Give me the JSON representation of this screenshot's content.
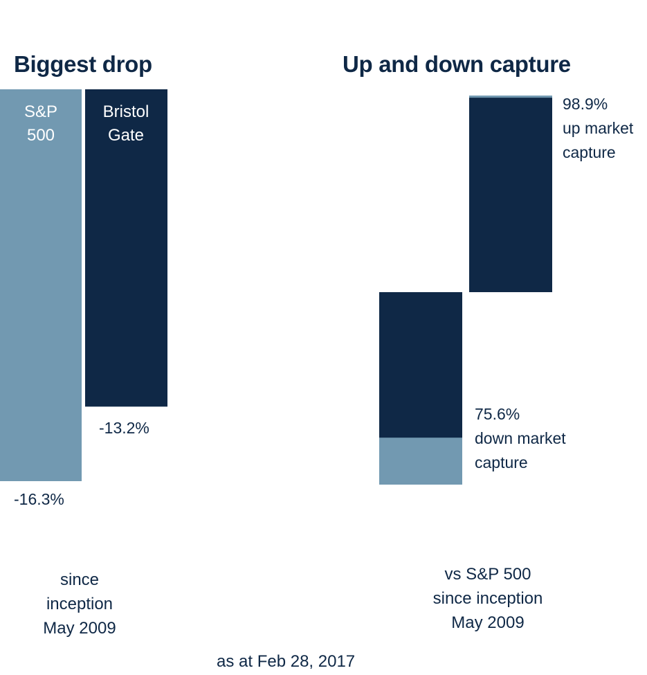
{
  "chart_data": [
    {
      "type": "bar",
      "title": "Biggest drop",
      "series": [
        {
          "name": "S&P 500",
          "name_lines": [
            "S&P",
            "500"
          ],
          "value": -16.3,
          "value_label": "-16.3%",
          "color": "#7299b1",
          "label_color": "#ffffff"
        },
        {
          "name": "Bristol Gate",
          "name_lines": [
            "Bristol",
            "Gate"
          ],
          "value": -13.2,
          "value_label": "-13.2%",
          "color": "#0f2846",
          "label_color": "#ffffff"
        }
      ],
      "note_lines": [
        "since",
        "inception",
        "May 2009"
      ]
    },
    {
      "type": "bar",
      "title": "Up and down capture",
      "series": [
        {
          "name": "down market capture",
          "value": 75.6,
          "value_label": "75.6%",
          "label_lines": [
            "down market",
            "capture"
          ],
          "color": "#0f2846",
          "base_color": "#7299b1"
        },
        {
          "name": "up market capture",
          "value": 98.9,
          "value_label": "98.9%",
          "label_lines": [
            "up market",
            "capture"
          ],
          "color": "#0f2846",
          "base_color": "#7299b1"
        }
      ],
      "note_lines": [
        "vs S&P 500",
        "since inception",
        "May 2009"
      ]
    }
  ],
  "footer": "as at Feb 28, 2017"
}
